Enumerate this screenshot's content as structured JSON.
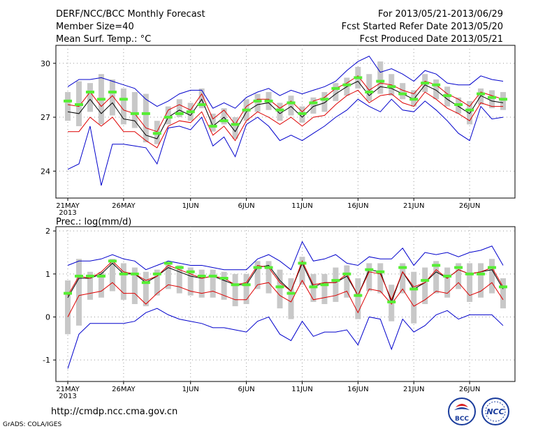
{
  "header": {
    "title": "DERF/NCC/BCC Monthly Forecast",
    "member_size": "Member Size=40",
    "variable": "Mean Surf. Temp.: °C",
    "period": "For 2013/05/21-2013/06/29",
    "fcst_started": "Fcst Started Refer Date 2013/05/20",
    "fcst_produced": "Fcst Produced Date 2013/05/21"
  },
  "footer": {
    "url": "http://cmdp.ncc.cma.gov.cn",
    "grads": "GrADS: COLA/IGES",
    "logo_bcc": "BCC",
    "logo_ncc": "NCC"
  },
  "colors": {
    "max_line": "#0000cc",
    "min_line": "#dd0000",
    "mean_line": "#000000",
    "box": "#c8c8c8",
    "obs": "#55ee33",
    "grid": "#999999"
  },
  "chart_data": [
    {
      "type": "ensemble-boxplot",
      "title": "Mean Surf. Temp.: °C",
      "xlabel": "",
      "ylabel": "",
      "x_start_label_year": "2013",
      "x_tick_labels": [
        "21MAY",
        "26MAY",
        "1JUN",
        "6JUN",
        "11JUN",
        "16JUN",
        "21JUN",
        "26JUN"
      ],
      "x_tick_day_index": [
        0,
        5,
        11,
        16,
        21,
        26,
        31,
        36
      ],
      "y_ticks": [
        24,
        27,
        30
      ],
      "ylim": [
        22.5,
        31.0
      ],
      "days": 40,
      "series": [
        {
          "name": "ensemble max",
          "values": [
            24.1,
            24.4,
            26.5,
            23.2,
            25.5,
            25.5,
            25.4,
            25.3,
            24.4,
            26.4,
            26.5,
            26.3,
            27.0,
            25.4,
            25.9,
            24.8,
            26.6,
            27.0,
            26.5,
            25.7,
            26.0,
            25.7,
            26.1,
            26.5,
            27.0,
            27.4,
            28.0,
            27.6,
            27.3,
            28.0,
            27.4,
            27.3,
            27.9,
            27.4,
            26.8,
            26.1,
            25.7,
            27.6,
            26.9,
            27.0
          ]
        },
        {
          "name": "ensemble min",
          "values": [
            26.2,
            26.2,
            27.0,
            26.5,
            27.0,
            26.2,
            26.2,
            25.7,
            25.3,
            26.5,
            26.8,
            26.7,
            27.3,
            26.0,
            26.5,
            25.7,
            26.8,
            27.3,
            27.0,
            26.6,
            27.0,
            26.5,
            27.0,
            27.1,
            27.7,
            28.2,
            28.5,
            27.8,
            28.2,
            28.3,
            27.8,
            27.6,
            28.4,
            28.0,
            27.5,
            27.2,
            26.8,
            27.8,
            27.6,
            27.6
          ]
        },
        {
          "name": "ensemble mean",
          "values": [
            27.3,
            27.2,
            28.0,
            27.2,
            27.8,
            26.9,
            26.8,
            26.0,
            25.8,
            27.0,
            27.4,
            27.1,
            28.0,
            26.5,
            27.0,
            26.2,
            27.3,
            27.7,
            27.8,
            27.2,
            27.6,
            27.0,
            27.6,
            27.8,
            28.3,
            28.7,
            29.0,
            28.2,
            28.7,
            28.6,
            28.3,
            28.0,
            28.8,
            28.5,
            28.0,
            27.6,
            27.2,
            28.2,
            27.9,
            27.8
          ]
        },
        {
          "name": "observed",
          "values": [
            27.9,
            27.7,
            28.4,
            28.0,
            28.4,
            28.0,
            27.2,
            27.2,
            26.1,
            27.0,
            27.2,
            27.3,
            27.7,
            26.5,
            26.8,
            26.6,
            27.4,
            27.9,
            27.9,
            27.4,
            27.8,
            27.2,
            27.8,
            28.0,
            28.6,
            28.8,
            29.2,
            28.4,
            29.0,
            28.7,
            28.3,
            28.0,
            28.9,
            28.8,
            28.2,
            27.7,
            27.4,
            28.3,
            28.1,
            28.0
          ]
        },
        {
          "name": "ensemble 2nd max",
          "values": [
            27.7,
            27.6,
            28.4,
            27.6,
            28.2,
            27.4,
            27.2,
            26.4,
            26.2,
            27.4,
            27.7,
            27.4,
            28.3,
            26.9,
            27.4,
            26.6,
            27.6,
            28.0,
            28.0,
            27.5,
            27.9,
            27.3,
            27.9,
            28.1,
            28.6,
            28.9,
            29.3,
            28.5,
            28.9,
            28.8,
            28.5,
            28.3,
            29.0,
            28.8,
            28.3,
            28.0,
            27.6,
            28.4,
            28.2,
            28.0
          ]
        },
        {
          "name": "ensemble outer max",
          "values": [
            28.7,
            29.1,
            29.1,
            29.2,
            29.0,
            28.8,
            28.6,
            28.0,
            27.6,
            27.9,
            28.3,
            28.5,
            28.5,
            27.5,
            27.8,
            27.5,
            28.1,
            28.4,
            28.6,
            28.2,
            28.5,
            28.3,
            28.5,
            28.7,
            29.0,
            29.6,
            30.1,
            30.4,
            29.5,
            29.7,
            29.4,
            29.0,
            29.6,
            29.4,
            28.9,
            28.8,
            28.8,
            29.3,
            29.1,
            29.0
          ]
        }
      ],
      "boxes": {
        "low": [
          26.8,
          26.5,
          27.3,
          26.6,
          27.1,
          26.6,
          26.4,
          25.6,
          25.5,
          26.6,
          27.0,
          26.8,
          27.5,
          26.2,
          26.6,
          25.8,
          26.8,
          27.3,
          27.4,
          26.8,
          27.1,
          26.7,
          27.2,
          27.3,
          27.9,
          28.2,
          28.6,
          27.9,
          28.3,
          28.2,
          28.0,
          27.6,
          28.4,
          28.0,
          27.6,
          27.2,
          26.6,
          27.7,
          27.5,
          27.4
        ],
        "high": [
          28.4,
          29.0,
          28.9,
          29.4,
          29.1,
          28.6,
          28.4,
          28.3,
          26.8,
          27.6,
          28.0,
          27.8,
          28.6,
          27.2,
          27.5,
          27.0,
          28.0,
          28.3,
          28.4,
          27.8,
          28.2,
          27.6,
          28.1,
          28.4,
          28.9,
          29.2,
          29.8,
          29.4,
          30.1,
          29.4,
          28.9,
          28.5,
          29.4,
          29.1,
          28.7,
          28.1,
          27.9,
          28.6,
          28.5,
          28.4
        ]
      }
    },
    {
      "type": "ensemble-boxplot",
      "title": "Prec.: log(mm/d)",
      "xlabel": "",
      "ylabel": "",
      "x_start_label_year": "2013",
      "x_tick_labels": [
        "21MAY",
        "26MAY",
        "1JUN",
        "6JUN",
        "11JUN",
        "16JUN",
        "21JUN",
        "26JUN"
      ],
      "x_tick_day_index": [
        0,
        5,
        11,
        16,
        21,
        26,
        31,
        36
      ],
      "y_ticks": [
        -1,
        0,
        1,
        2
      ],
      "ylim": [
        -1.5,
        2.1
      ],
      "days": 40,
      "series": [
        {
          "name": "ensemble max",
          "values": [
            1.2,
            1.3,
            1.3,
            1.35,
            1.45,
            1.35,
            1.3,
            1.1,
            1.2,
            1.3,
            1.25,
            1.2,
            1.2,
            1.15,
            1.1,
            1.1,
            1.1,
            1.35,
            1.45,
            1.3,
            1.1,
            1.75,
            1.3,
            1.35,
            1.45,
            1.25,
            1.2,
            1.4,
            1.35,
            1.35,
            1.6,
            1.2,
            1.5,
            1.45,
            1.5,
            1.4,
            1.5,
            1.55,
            1.65,
            1.2
          ]
        },
        {
          "name": "ensemble min",
          "values": [
            0.0,
            0.5,
            0.55,
            0.6,
            0.8,
            0.55,
            0.55,
            0.3,
            0.55,
            0.75,
            0.7,
            0.6,
            0.55,
            0.6,
            0.5,
            0.4,
            0.4,
            0.75,
            0.8,
            0.5,
            0.35,
            0.85,
            0.4,
            0.45,
            0.5,
            0.6,
            0.1,
            0.65,
            0.6,
            0.3,
            0.65,
            0.25,
            0.4,
            0.6,
            0.55,
            0.8,
            0.5,
            0.6,
            0.8,
            0.4
          ]
        },
        {
          "name": "ensemble mean",
          "values": [
            0.45,
            0.9,
            0.9,
            1.0,
            1.25,
            1.0,
            1.0,
            0.8,
            0.95,
            1.15,
            1.05,
            0.95,
            0.9,
            0.95,
            0.85,
            0.75,
            0.75,
            1.15,
            1.2,
            0.85,
            0.6,
            1.25,
            0.7,
            0.8,
            0.8,
            0.95,
            0.5,
            1.1,
            1.05,
            0.35,
            1.05,
            0.65,
            0.8,
            1.05,
            0.9,
            1.1,
            1.0,
            1.05,
            1.1,
            0.65
          ]
        },
        {
          "name": "observed",
          "values": [
            0.55,
            0.95,
            0.95,
            0.95,
            1.3,
            1.0,
            1.0,
            0.8,
            1.0,
            1.25,
            1.15,
            1.05,
            0.95,
            0.95,
            0.9,
            0.75,
            0.75,
            1.15,
            1.15,
            0.7,
            0.55,
            1.25,
            0.7,
            0.75,
            0.85,
            1.0,
            0.5,
            1.1,
            1.05,
            0.35,
            1.15,
            0.65,
            0.85,
            1.2,
            0.95,
            1.15,
            1.0,
            1.0,
            1.15,
            0.7
          ]
        },
        {
          "name": "ensemble 2nd max",
          "values": [
            0.5,
            0.95,
            0.9,
            1.05,
            1.3,
            1.05,
            1.0,
            0.85,
            0.95,
            1.2,
            1.1,
            1.0,
            0.9,
            0.95,
            0.9,
            0.75,
            0.8,
            1.2,
            1.15,
            0.8,
            0.6,
            1.3,
            0.75,
            0.8,
            0.8,
            1.0,
            0.5,
            1.05,
            1.0,
            0.4,
            1.05,
            0.7,
            0.8,
            1.1,
            0.9,
            1.1,
            1.0,
            1.05,
            1.15,
            0.7
          ]
        },
        {
          "name": "ensemble outer min",
          "values": [
            -1.2,
            -0.4,
            -0.15,
            -0.15,
            -0.15,
            -0.15,
            -0.1,
            0.1,
            0.2,
            0.05,
            -0.05,
            -0.1,
            -0.15,
            -0.25,
            -0.25,
            -0.3,
            -0.35,
            -0.1,
            0.0,
            -0.4,
            -0.55,
            -0.1,
            -0.45,
            -0.35,
            -0.35,
            -0.3,
            -0.65,
            0.0,
            -0.05,
            -0.75,
            -0.05,
            -0.35,
            -0.2,
            0.05,
            0.15,
            -0.05,
            0.05,
            0.05,
            0.05,
            -0.2
          ]
        }
      ],
      "boxes": {
        "low": [
          -0.4,
          -0.2,
          0.4,
          0.45,
          0.6,
          0.4,
          0.3,
          0.25,
          0.5,
          0.65,
          0.55,
          0.5,
          0.45,
          0.45,
          0.4,
          0.25,
          0.3,
          0.65,
          0.55,
          0.2,
          -0.05,
          0.75,
          0.35,
          0.3,
          0.35,
          0.45,
          -0.05,
          0.6,
          0.55,
          -0.1,
          0.55,
          -0.15,
          0.3,
          0.55,
          0.45,
          0.65,
          0.35,
          0.45,
          0.55,
          0.2
        ],
        "high": [
          0.85,
          1.35,
          1.05,
          1.05,
          1.35,
          1.25,
          1.15,
          1.05,
          1.1,
          1.25,
          1.2,
          1.15,
          1.1,
          1.1,
          1.05,
          1.0,
          1.0,
          1.3,
          1.3,
          1.1,
          0.9,
          1.4,
          1.0,
          1.0,
          1.15,
          1.2,
          0.9,
          1.25,
          1.25,
          0.75,
          1.25,
          1.05,
          1.15,
          1.3,
          1.15,
          1.25,
          1.25,
          1.25,
          1.35,
          0.9
        ]
      }
    }
  ]
}
